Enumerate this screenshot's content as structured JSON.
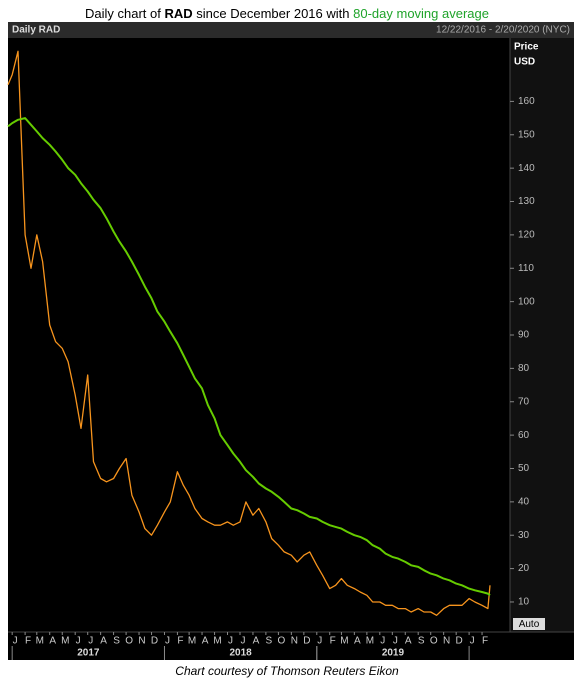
{
  "chart_data": {
    "type": "line",
    "title_parts": [
      "Daily chart of",
      "RAD",
      "since December 2016 with",
      "80-day moving average"
    ],
    "header_left": "Daily RAD",
    "header_right": "12/22/2016 - 2/20/2020 (NYC)",
    "axis_label_lines": [
      "Price",
      "USD"
    ],
    "scale_mode": "Auto",
    "caption": "Chart courtesy of Thomson Reuters Eikon",
    "x": [
      "2016-12-22",
      "2017-01-01",
      "2017-01-15",
      "2017-02-01",
      "2017-02-15",
      "2017-03-01",
      "2017-03-15",
      "2017-04-01",
      "2017-04-15",
      "2017-05-01",
      "2017-05-15",
      "2017-06-01",
      "2017-06-15",
      "2017-07-01",
      "2017-07-15",
      "2017-08-01",
      "2017-08-15",
      "2017-09-01",
      "2017-09-15",
      "2017-10-01",
      "2017-10-15",
      "2017-11-01",
      "2017-11-15",
      "2017-12-01",
      "2017-12-15",
      "2018-01-01",
      "2018-01-15",
      "2018-02-01",
      "2018-02-15",
      "2018-03-01",
      "2018-03-15",
      "2018-04-01",
      "2018-04-15",
      "2018-05-01",
      "2018-05-15",
      "2018-06-01",
      "2018-06-15",
      "2018-07-01",
      "2018-07-15",
      "2018-08-01",
      "2018-08-15",
      "2018-09-01",
      "2018-09-15",
      "2018-10-01",
      "2018-10-15",
      "2018-11-01",
      "2018-11-15",
      "2018-12-01",
      "2018-12-15",
      "2019-01-01",
      "2019-01-15",
      "2019-02-01",
      "2019-02-15",
      "2019-03-01",
      "2019-03-15",
      "2019-04-01",
      "2019-04-15",
      "2019-05-01",
      "2019-05-15",
      "2019-06-01",
      "2019-06-15",
      "2019-07-01",
      "2019-07-15",
      "2019-08-01",
      "2019-08-15",
      "2019-09-01",
      "2019-09-15",
      "2019-10-01",
      "2019-10-15",
      "2019-11-01",
      "2019-11-15",
      "2019-12-01",
      "2019-12-15",
      "2020-01-01",
      "2020-01-15",
      "2020-02-01",
      "2020-02-15",
      "2020-02-20"
    ],
    "series": [
      {
        "color": "#f7941d",
        "values": [
          165,
          168,
          175,
          120,
          110,
          120,
          112,
          93,
          88,
          86,
          82,
          72,
          62,
          78,
          52,
          47,
          46,
          47,
          50,
          53,
          42,
          37,
          32,
          30,
          33,
          37,
          40,
          49,
          45,
          42,
          38,
          35,
          34,
          33,
          33,
          34,
          33,
          34,
          40,
          36,
          38,
          34,
          29,
          27,
          25,
          24,
          22,
          24,
          25,
          21,
          18,
          14,
          15,
          17,
          15,
          14,
          13,
          12,
          10,
          10,
          9,
          9,
          8,
          8,
          7,
          8,
          7,
          7,
          6,
          8,
          9,
          9,
          9,
          11,
          10,
          9,
          8,
          15
        ]
      },
      {
        "color": "#66cc00",
        "values": [
          152.5,
          153.5,
          154.5,
          155,
          153,
          151,
          149,
          147,
          145,
          142.5,
          140,
          138,
          135.5,
          133,
          130.5,
          128,
          125,
          121,
          118,
          115,
          112,
          108,
          104.5,
          101,
          97,
          94,
          91,
          87.5,
          84,
          80.5,
          77,
          74,
          69,
          65,
          60,
          57,
          54.5,
          52,
          49.5,
          47.5,
          45.5,
          44,
          43,
          41.5,
          40,
          38,
          37.5,
          36.5,
          35.5,
          35,
          34,
          33,
          32.5,
          32,
          31,
          30,
          29.5,
          28.5,
          27,
          26,
          24.5,
          23.5,
          23,
          22,
          21,
          20.5,
          19.5,
          18.5,
          18,
          17,
          16.5,
          15.5,
          15,
          14,
          13.5,
          13,
          12.5,
          12
        ]
      }
    ],
    "xlim": [
      "2016-12-22",
      "2020-04-08"
    ],
    "xticks": [
      {
        "value": "2017-01-01",
        "label": "J"
      },
      {
        "value": "2017-02-01",
        "label": "F"
      },
      {
        "value": "2017-03-01",
        "label": "M"
      },
      {
        "value": "2017-04-01",
        "label": "A"
      },
      {
        "value": "2017-05-01",
        "label": "M"
      },
      {
        "value": "2017-06-01",
        "label": "J"
      },
      {
        "value": "2017-07-01",
        "label": "J"
      },
      {
        "value": "2017-08-01",
        "label": "A"
      },
      {
        "value": "2017-09-01",
        "label": "S"
      },
      {
        "value": "2017-10-01",
        "label": "O"
      },
      {
        "value": "2017-11-01",
        "label": "N"
      },
      {
        "value": "2017-12-01",
        "label": "D"
      },
      {
        "value": "2018-01-01",
        "label": "J"
      },
      {
        "value": "2018-02-01",
        "label": "F"
      },
      {
        "value": "2018-03-01",
        "label": "M"
      },
      {
        "value": "2018-04-01",
        "label": "A"
      },
      {
        "value": "2018-05-01",
        "label": "M"
      },
      {
        "value": "2018-06-01",
        "label": "J"
      },
      {
        "value": "2018-07-01",
        "label": "J"
      },
      {
        "value": "2018-08-01",
        "label": "A"
      },
      {
        "value": "2018-09-01",
        "label": "S"
      },
      {
        "value": "2018-10-01",
        "label": "O"
      },
      {
        "value": "2018-11-01",
        "label": "N"
      },
      {
        "value": "2018-12-01",
        "label": "D"
      },
      {
        "value": "2019-01-01",
        "label": "J"
      },
      {
        "value": "2019-02-01",
        "label": "F"
      },
      {
        "value": "2019-03-01",
        "label": "M"
      },
      {
        "value": "2019-04-01",
        "label": "A"
      },
      {
        "value": "2019-05-01",
        "label": "M"
      },
      {
        "value": "2019-06-01",
        "label": "J"
      },
      {
        "value": "2019-07-01",
        "label": "J"
      },
      {
        "value": "2019-08-01",
        "label": "A"
      },
      {
        "value": "2019-09-01",
        "label": "S"
      },
      {
        "value": "2019-10-01",
        "label": "O"
      },
      {
        "value": "2019-11-01",
        "label": "N"
      },
      {
        "value": "2019-12-01",
        "label": "D"
      },
      {
        "value": "2020-01-01",
        "label": "J"
      },
      {
        "value": "2020-02-01",
        "label": "F"
      }
    ],
    "year_ticks": [
      {
        "value": "2017-01-01",
        "label": "2017"
      },
      {
        "value": "2018-01-01",
        "label": "2018"
      },
      {
        "value": "2019-01-01",
        "label": "2019"
      }
    ],
    "ylim": [
      1,
      179
    ],
    "yticks": [
      10,
      20,
      30,
      40,
      50,
      60,
      70,
      80,
      90,
      100,
      110,
      120,
      130,
      140,
      150,
      160
    ],
    "grid": false
  }
}
